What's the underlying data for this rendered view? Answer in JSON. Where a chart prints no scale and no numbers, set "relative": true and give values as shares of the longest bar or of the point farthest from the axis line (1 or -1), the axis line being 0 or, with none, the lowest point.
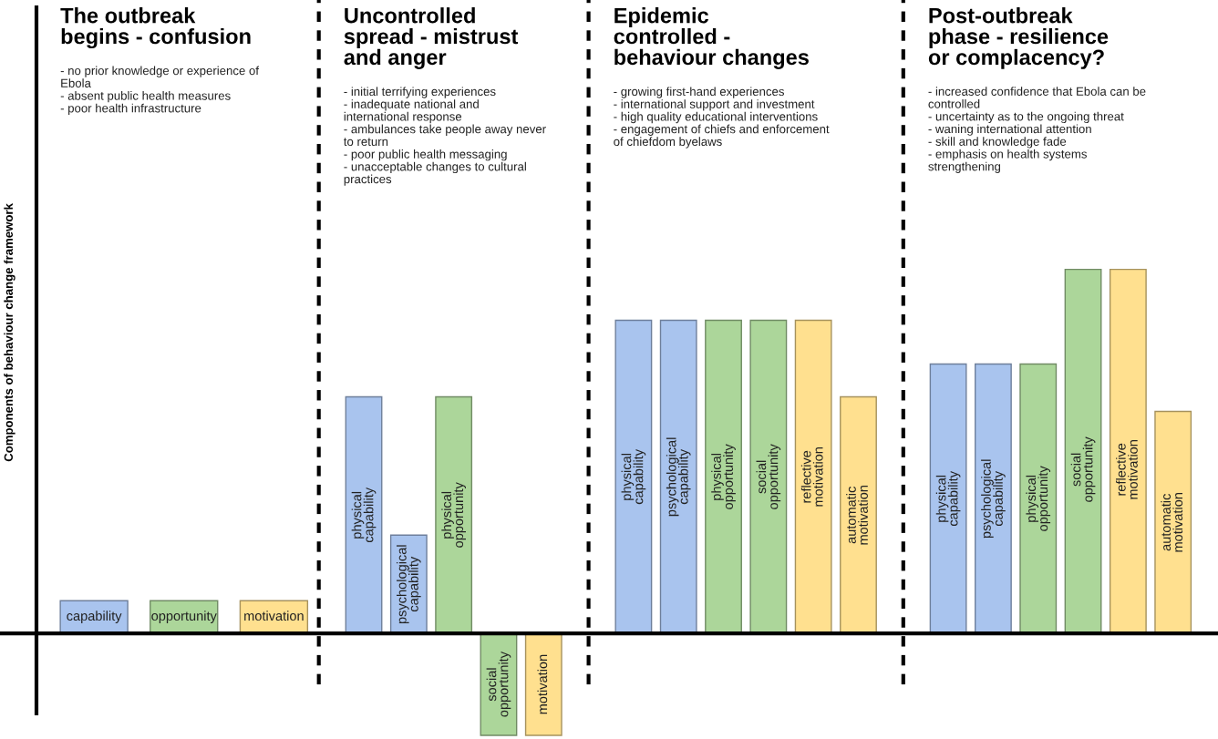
{
  "chart_data": {
    "type": "bar",
    "relative": true,
    "ylabel": "Components of behaviour change framework",
    "categories": [
      "capability",
      null,
      "opportunity",
      null,
      "motivation",
      null,
      "physical capability",
      "psychological capability",
      "physical opportunity",
      "social opportunity",
      "motivation",
      null,
      "physical capability",
      "psychological capability",
      "physical opportunity",
      "social opportunity",
      "reflective motivation",
      "automatic motivation",
      null,
      "physical capability",
      "psychological capability",
      "physical opportunity",
      "social opportunity",
      "reflective motivation",
      "automatic motivation"
    ],
    "values": [
      0.09,
      null,
      0.09,
      null,
      0.09,
      null,
      0.65,
      0.27,
      0.65,
      -0.28,
      -0.28,
      null,
      0.86,
      0.86,
      0.86,
      0.86,
      0.86,
      0.65,
      null,
      0.74,
      0.74,
      0.74,
      1,
      1,
      0.61
    ],
    "colors": [
      "#a9c4ee",
      null,
      "#acd69a",
      null,
      "#ffe08f",
      null,
      "#a9c4ee",
      "#a9c4ee",
      "#acd69a",
      "#acd69a",
      "#ffe08f",
      null,
      "#a9c4ee",
      "#a9c4ee",
      "#acd69a",
      "#acd69a",
      "#ffe08f",
      "#ffe08f",
      null,
      "#a9c4ee",
      "#a9c4ee",
      "#acd69a",
      "#acd69a",
      "#ffe08f",
      "#ffe08f"
    ],
    "annotations": [
      "The outbreak\nbegins - confusion",
      "- no prior knowledge or experience of\nEbola\n- absent public health measures\n- poor health infrastructure",
      "Uncontrolled\nspread - mistrust\nand anger",
      "- initial terrifying experiences\n- inadequate national and\ninternational response\n- ambulances take people away never\nto return\n- poor public health messaging\n- unacceptable changes to cultural\npractices",
      "Epidemic\ncontrolled -\nbehaviour changes",
      "- growing first-hand experiences\n- international support and investment\n- high quality educational interventions\n- engagement of chiefs and enforcement\nof chiefdom byelaws",
      "Post-outbreak\nphase - resilience\nor complacency?",
      "- increased confidence that Ebola can be\ncontrolled\n- uncertainty as to the ongoing threat\n- waning international attention\n- skill and knowledge fade\n- emphasis on health systems\nstrengthening"
    ],
    "legend": false
  }
}
